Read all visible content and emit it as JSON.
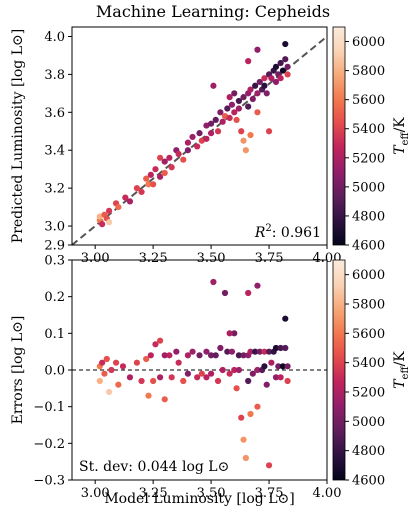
{
  "figure_title": "Machine Learning: Cepheids",
  "colors": {
    "colormap": [
      "#03051a",
      "#2d1141",
      "#5e1e5b",
      "#901e6b",
      "#c0235d",
      "#e44b4c",
      "#f2784e",
      "#f6a878",
      "#fad3b5",
      "#faebdd"
    ],
    "identity_line": "#555555",
    "zero_line": "#000000",
    "axis": "#000000"
  },
  "chart_data": [
    {
      "type": "scatter",
      "title": "",
      "xlabel": "",
      "ylabel": "Predicted Luminosity [log L⊙]",
      "xlim": [
        2.9,
        4.0
      ],
      "ylim": [
        2.9,
        4.05
      ],
      "xticks": [
        "3.00",
        "3.25",
        "3.50",
        "3.75",
        "4.00"
      ],
      "xtick_values": [
        3.0,
        3.25,
        3.5,
        3.75,
        4.0
      ],
      "yticks": [
        "2.9",
        "3.0",
        "3.2",
        "3.4",
        "3.6",
        "3.8",
        "4.0"
      ],
      "ytick_values": [
        2.9,
        3.0,
        3.2,
        3.4,
        3.6,
        3.8,
        4.0
      ],
      "reference_line": "y = x (dashed)",
      "annotation": {
        "label": "R",
        "sup": "2",
        "text": ": 0.961"
      },
      "colorbar": {
        "label": "T",
        "label_sub": "eff",
        "label_unit": "/K",
        "range": [
          4600,
          6100
        ],
        "ticks": [
          "4600",
          "4800",
          "5000",
          "5200",
          "5400",
          "5600",
          "5800",
          "6000"
        ],
        "tick_values": [
          4600,
          4800,
          5000,
          5200,
          5400,
          5600,
          5800,
          6000
        ]
      },
      "points": [
        [
          3.02,
          3.03,
          5600
        ],
        [
          3.02,
          3.05,
          5800
        ],
        [
          3.03,
          3.01,
          5300
        ],
        [
          3.04,
          3.06,
          5500
        ],
        [
          3.05,
          3.04,
          5450
        ],
        [
          3.06,
          3.08,
          5350
        ],
        [
          3.06,
          3.02,
          5900
        ],
        [
          3.09,
          3.12,
          5400
        ],
        [
          3.1,
          3.1,
          5550
        ],
        [
          3.13,
          3.15,
          5300
        ],
        [
          3.15,
          3.13,
          5200
        ],
        [
          3.18,
          3.2,
          5400
        ],
        [
          3.2,
          3.18,
          5350
        ],
        [
          3.22,
          3.25,
          5500
        ],
        [
          3.23,
          3.22,
          5600
        ],
        [
          3.24,
          3.27,
          5250
        ],
        [
          3.25,
          3.22,
          5450
        ],
        [
          3.26,
          3.3,
          5300
        ],
        [
          3.28,
          3.26,
          5200
        ],
        [
          3.28,
          3.36,
          5400
        ],
        [
          3.3,
          3.34,
          5150
        ],
        [
          3.3,
          3.28,
          5500
        ],
        [
          3.32,
          3.36,
          5250
        ],
        [
          3.33,
          3.31,
          5350
        ],
        [
          3.35,
          3.4,
          5100
        ],
        [
          3.36,
          3.38,
          5300
        ],
        [
          3.38,
          3.35,
          5450
        ],
        [
          3.4,
          3.44,
          5200
        ],
        [
          3.4,
          3.4,
          5050
        ],
        [
          3.42,
          3.47,
          5150
        ],
        [
          3.44,
          3.42,
          5300
        ],
        [
          3.45,
          3.49,
          5000
        ],
        [
          3.46,
          3.45,
          5400
        ],
        [
          3.48,
          3.53,
          5100
        ],
        [
          3.48,
          3.46,
          5250
        ],
        [
          3.5,
          3.54,
          5000
        ],
        [
          3.5,
          3.49,
          5200
        ],
        [
          3.51,
          3.74,
          5150
        ],
        [
          3.52,
          3.56,
          4950
        ],
        [
          3.53,
          3.5,
          5350
        ],
        [
          3.54,
          3.6,
          5050
        ],
        [
          3.55,
          3.55,
          5200
        ],
        [
          3.56,
          3.58,
          5500
        ],
        [
          3.57,
          3.62,
          4900
        ],
        [
          3.58,
          3.57,
          5300
        ],
        [
          3.59,
          3.64,
          5100
        ],
        [
          3.6,
          3.6,
          5250
        ],
        [
          3.6,
          3.7,
          5000
        ],
        [
          3.61,
          3.56,
          5450
        ],
        [
          3.62,
          3.66,
          4850
        ],
        [
          3.62,
          3.62,
          5150
        ],
        [
          3.63,
          3.5,
          5400
        ],
        [
          3.64,
          3.68,
          5000
        ],
        [
          3.64,
          3.45,
          5700
        ],
        [
          3.65,
          3.4,
          5700
        ],
        [
          3.66,
          3.7,
          5100
        ],
        [
          3.66,
          3.63,
          4900
        ],
        [
          3.67,
          3.72,
          5200
        ],
        [
          3.67,
          3.48,
          5600
        ],
        [
          3.68,
          3.67,
          5050
        ],
        [
          3.69,
          3.74,
          4800
        ],
        [
          3.7,
          3.7,
          5150
        ],
        [
          3.7,
          3.6,
          5500
        ],
        [
          3.71,
          3.76,
          5000
        ],
        [
          3.72,
          3.72,
          4900
        ],
        [
          3.73,
          3.78,
          5300
        ],
        [
          3.73,
          3.74,
          4750
        ],
        [
          3.74,
          3.7,
          5050
        ],
        [
          3.75,
          3.8,
          4900
        ],
        [
          3.75,
          3.5,
          5400
        ],
        [
          3.76,
          3.78,
          5200
        ],
        [
          3.77,
          3.82,
          4800
        ],
        [
          3.78,
          3.76,
          5100
        ],
        [
          3.78,
          3.84,
          4700
        ],
        [
          3.79,
          3.8,
          5000
        ],
        [
          3.8,
          3.86,
          4850
        ],
        [
          3.8,
          3.78,
          5250
        ],
        [
          3.81,
          3.82,
          4650
        ],
        [
          3.82,
          3.88,
          4900
        ],
        [
          3.82,
          3.96,
          4700
        ],
        [
          3.83,
          3.84,
          5000
        ],
        [
          3.83,
          3.8,
          5400
        ],
        [
          3.7,
          3.93,
          5100
        ],
        [
          3.66,
          3.87,
          5250
        ],
        [
          3.58,
          3.68,
          5200
        ]
      ]
    },
    {
      "type": "scatter",
      "title": "",
      "xlabel": "Model Luminosity [log L⊙]",
      "ylabel": "Errors [log L⊙]",
      "xlim": [
        2.9,
        4.0
      ],
      "ylim": [
        -0.3,
        0.3
      ],
      "xticks": [
        "3.00",
        "3.25",
        "3.50",
        "3.75",
        "4.00"
      ],
      "xtick_values": [
        3.0,
        3.25,
        3.5,
        3.75,
        4.0
      ],
      "yticks": [
        "−0.3",
        "−0.2",
        "−0.1",
        "0.0",
        "0.1",
        "0.2",
        "0.3"
      ],
      "ytick_values": [
        -0.3,
        -0.2,
        -0.1,
        0.0,
        0.1,
        0.2,
        0.3
      ],
      "reference_line": "y = 0 (dashed)",
      "annotation": {
        "text": "St. dev: 0.044 log L⊙"
      },
      "colorbar": {
        "label": "T",
        "label_sub": "eff",
        "label_unit": "/K",
        "range": [
          4600,
          6100
        ],
        "ticks": [
          "4600",
          "4800",
          "5000",
          "5200",
          "5400",
          "5600",
          "5800",
          "6000"
        ],
        "tick_values": [
          4600,
          4800,
          5000,
          5200,
          5400,
          5600,
          5800,
          6000
        ]
      },
      "points": [
        [
          3.02,
          0.01,
          5600
        ],
        [
          3.02,
          -0.03,
          5800
        ],
        [
          3.03,
          0.02,
          5300
        ],
        [
          3.04,
          -0.01,
          5500
        ],
        [
          3.05,
          0.03,
          5450
        ],
        [
          3.06,
          -0.06,
          5900
        ],
        [
          3.07,
          0.0,
          5350
        ],
        [
          3.09,
          0.02,
          5400
        ],
        [
          3.1,
          -0.04,
          5550
        ],
        [
          3.12,
          0.01,
          5300
        ],
        [
          3.15,
          -0.02,
          5200
        ],
        [
          3.18,
          0.02,
          5400
        ],
        [
          3.2,
          -0.03,
          5350
        ],
        [
          3.22,
          0.03,
          5500
        ],
        [
          3.23,
          -0.07,
          5600
        ],
        [
          3.24,
          0.04,
          5250
        ],
        [
          3.25,
          -0.03,
          5450
        ],
        [
          3.26,
          0.07,
          5300
        ],
        [
          3.28,
          -0.02,
          5200
        ],
        [
          3.28,
          0.08,
          5400
        ],
        [
          3.3,
          0.04,
          5150
        ],
        [
          3.3,
          -0.08,
          5500
        ],
        [
          3.32,
          0.04,
          5250
        ],
        [
          3.33,
          -0.02,
          5350
        ],
        [
          3.35,
          0.05,
          5100
        ],
        [
          3.36,
          0.02,
          5300
        ],
        [
          3.38,
          -0.03,
          5450
        ],
        [
          3.4,
          0.04,
          5200
        ],
        [
          3.4,
          -0.01,
          5050
        ],
        [
          3.42,
          0.05,
          5150
        ],
        [
          3.44,
          -0.02,
          5300
        ],
        [
          3.45,
          0.04,
          5000
        ],
        [
          3.46,
          -0.01,
          5400
        ],
        [
          3.48,
          0.05,
          5100
        ],
        [
          3.48,
          -0.02,
          5250
        ],
        [
          3.5,
          0.04,
          5000
        ],
        [
          3.5,
          -0.01,
          5200
        ],
        [
          3.51,
          0.24,
          5150
        ],
        [
          3.52,
          0.04,
          4950
        ],
        [
          3.53,
          -0.03,
          5350
        ],
        [
          3.54,
          0.06,
          5050
        ],
        [
          3.55,
          0.0,
          5200
        ],
        [
          3.56,
          0.21,
          5000
        ],
        [
          3.57,
          0.05,
          4900
        ],
        [
          3.58,
          -0.01,
          5300
        ],
        [
          3.59,
          0.05,
          5100
        ],
        [
          3.6,
          0.0,
          5250
        ],
        [
          3.6,
          0.1,
          5000
        ],
        [
          3.61,
          -0.05,
          5450
        ],
        [
          3.62,
          0.04,
          4850
        ],
        [
          3.62,
          0.0,
          5150
        ],
        [
          3.63,
          -0.13,
          5400
        ],
        [
          3.64,
          0.04,
          5000
        ],
        [
          3.64,
          -0.19,
          5700
        ],
        [
          3.65,
          -0.24,
          5700
        ],
        [
          3.66,
          0.04,
          5100
        ],
        [
          3.66,
          -0.03,
          4900
        ],
        [
          3.67,
          0.05,
          5200
        ],
        [
          3.67,
          -0.12,
          5600
        ],
        [
          3.68,
          -0.01,
          5050
        ],
        [
          3.69,
          0.05,
          4800
        ],
        [
          3.7,
          0.0,
          5150
        ],
        [
          3.7,
          -0.1,
          5500
        ],
        [
          3.71,
          0.05,
          5000
        ],
        [
          3.72,
          0.0,
          4900
        ],
        [
          3.73,
          0.05,
          5300
        ],
        [
          3.73,
          0.01,
          4750
        ],
        [
          3.74,
          -0.04,
          5050
        ],
        [
          3.75,
          0.05,
          4900
        ],
        [
          3.75,
          -0.26,
          5400
        ],
        [
          3.76,
          0.02,
          5200
        ],
        [
          3.77,
          0.05,
          4800
        ],
        [
          3.78,
          -0.02,
          5100
        ],
        [
          3.78,
          0.06,
          4700
        ],
        [
          3.79,
          0.01,
          5000
        ],
        [
          3.8,
          0.06,
          4850
        ],
        [
          3.8,
          -0.02,
          5250
        ],
        [
          3.81,
          0.01,
          4650
        ],
        [
          3.82,
          0.06,
          4900
        ],
        [
          3.82,
          0.14,
          4700
        ],
        [
          3.83,
          0.01,
          5000
        ],
        [
          3.83,
          -0.03,
          5400
        ],
        [
          3.7,
          0.23,
          5100
        ],
        [
          3.66,
          0.21,
          5250
        ],
        [
          3.58,
          0.1,
          5200
        ]
      ]
    }
  ]
}
